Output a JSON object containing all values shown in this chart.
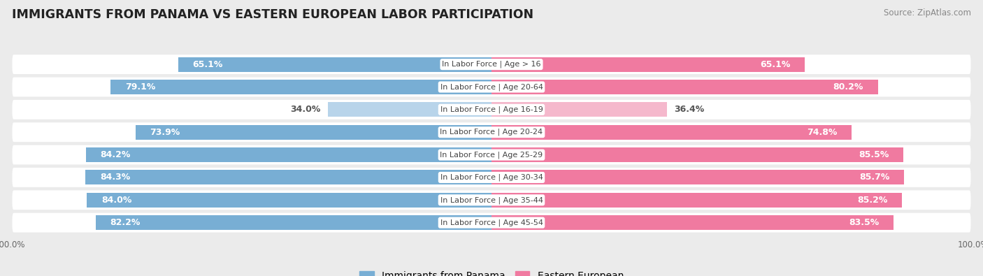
{
  "title": "IMMIGRANTS FROM PANAMA VS EASTERN EUROPEAN LABOR PARTICIPATION",
  "source": "Source: ZipAtlas.com",
  "categories": [
    "In Labor Force | Age > 16",
    "In Labor Force | Age 20-64",
    "In Labor Force | Age 16-19",
    "In Labor Force | Age 20-24",
    "In Labor Force | Age 25-29",
    "In Labor Force | Age 30-34",
    "In Labor Force | Age 35-44",
    "In Labor Force | Age 45-54"
  ],
  "panama_values": [
    65.1,
    79.1,
    34.0,
    73.9,
    84.2,
    84.3,
    84.0,
    82.2
  ],
  "eastern_values": [
    65.1,
    80.2,
    36.4,
    74.8,
    85.5,
    85.7,
    85.2,
    83.5
  ],
  "panama_color": "#78aed4",
  "panama_color_light": "#b8d4ea",
  "eastern_color": "#f07aa0",
  "eastern_color_light": "#f5b8cc",
  "max_value": 100.0,
  "background_color": "#ebebeb",
  "row_bg_even": "#f5f5f5",
  "row_bg_odd": "#e8e8e8",
  "label_fontsize": 9.0,
  "title_fontsize": 12.5,
  "legend_fontsize": 10,
  "source_fontsize": 8.5
}
